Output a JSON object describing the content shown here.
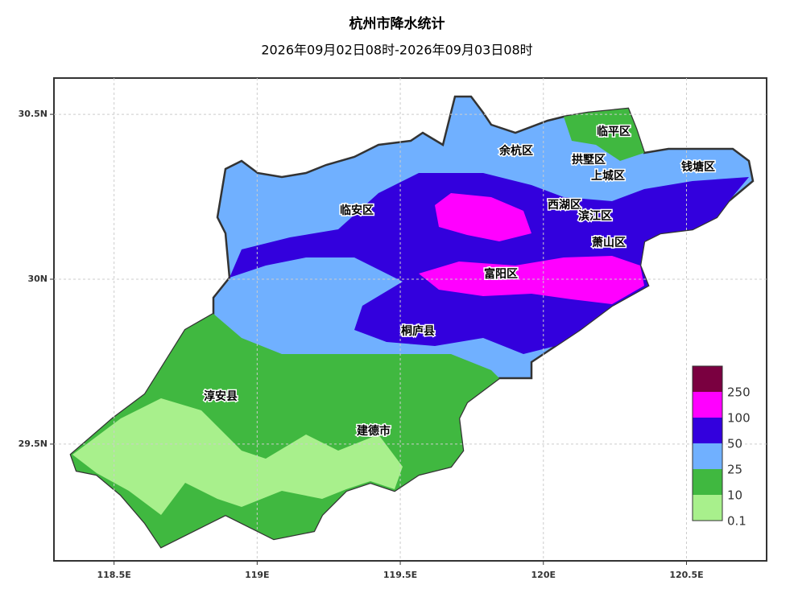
{
  "header": {
    "title": "杭州市降水统计",
    "subtitle": "2026年09月02日08时-2026年09月03日08时"
  },
  "map": {
    "xlim": [
      118.29,
      120.78
    ],
    "ylim": [
      29.146,
      30.61
    ],
    "xticks": [
      {
        "value": 118.5,
        "label": "118.5E"
      },
      {
        "value": 119,
        "label": "119E"
      },
      {
        "value": 119.5,
        "label": "119.5E"
      },
      {
        "value": 120,
        "label": "120E"
      },
      {
        "value": 120.5,
        "label": "120.5E"
      }
    ],
    "yticks": [
      {
        "value": 29.5,
        "label": "29.5N"
      },
      {
        "value": 30,
        "label": "30N"
      },
      {
        "value": 30.5,
        "label": "30.5N"
      }
    ],
    "grid": true,
    "districts": [
      "余杭区",
      "临平区",
      "拱墅区",
      "上城区",
      "钱塘区",
      "临安区",
      "西湖区",
      "滨江区",
      "萧山区",
      "富阳区",
      "桐庐县",
      "淳安县",
      "建德市"
    ]
  },
  "legend": {
    "values": [
      250,
      100,
      50,
      25,
      10,
      0.1
    ],
    "colors": [
      "#7a0040",
      "#ff00ff",
      "#3300dd",
      "#70b0ff",
      "#40b840",
      "#a8f08c"
    ]
  }
}
